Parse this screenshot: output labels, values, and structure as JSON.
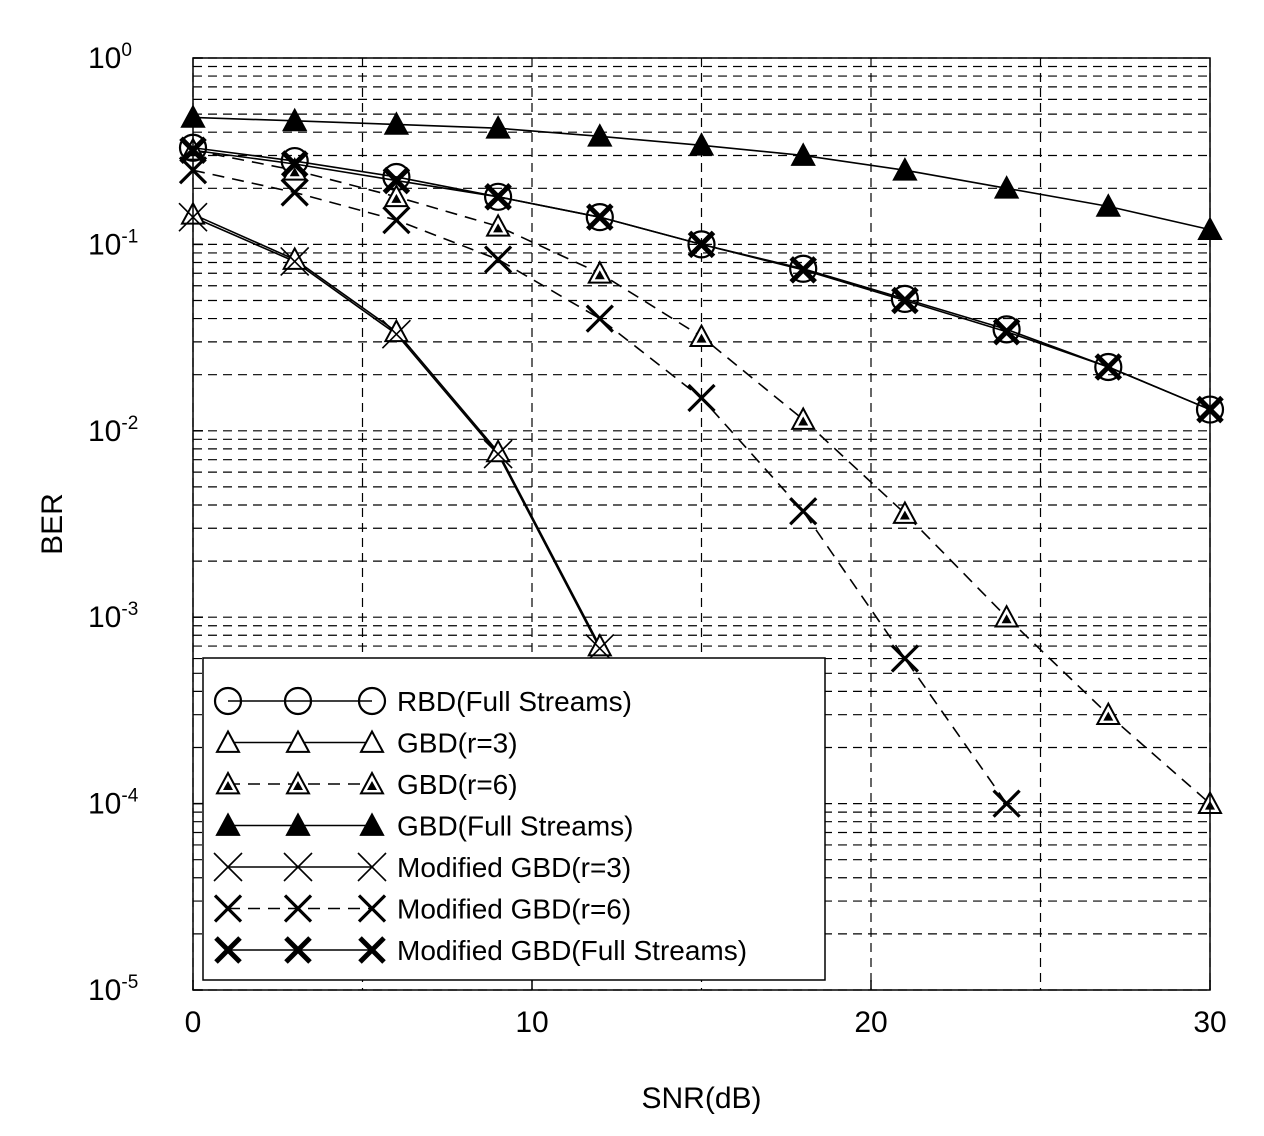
{
  "chart_data": {
    "type": "line",
    "xlabel": "SNR(dB)",
    "ylabel": "BER",
    "xlim": [
      0,
      30
    ],
    "ylim": [
      1e-05,
      1
    ],
    "yscale": "log",
    "grid": true,
    "legend_position": "bottom-left",
    "x_ticks": [
      {
        "value": 0,
        "label": "0"
      },
      {
        "value": 10,
        "label": "10"
      },
      {
        "value": 20,
        "label": "20"
      },
      {
        "value": 30,
        "label": "30"
      }
    ],
    "y_ticks": [
      {
        "value": 1,
        "base": "10",
        "exp": "0"
      },
      {
        "value": 0.1,
        "base": "10",
        "exp": "-1"
      },
      {
        "value": 0.01,
        "base": "10",
        "exp": "-2"
      },
      {
        "value": 0.001,
        "base": "10",
        "exp": "-3"
      },
      {
        "value": 0.0001,
        "base": "10",
        "exp": "-4"
      },
      {
        "value": 1e-05,
        "base": "10",
        "exp": "-5"
      }
    ],
    "series": [
      {
        "name": "RBD(Full Streams)",
        "marker": "circle",
        "line": "solid",
        "x": [
          0,
          3,
          6,
          9,
          12,
          15,
          18,
          21,
          24,
          27,
          30
        ],
        "y": [
          0.33,
          0.28,
          0.23,
          0.18,
          0.14,
          0.1,
          0.074,
          0.051,
          0.035,
          0.022,
          0.013
        ]
      },
      {
        "name": "GBD(r=3)",
        "marker": "triangle-open",
        "line": "solid",
        "x": [
          0,
          3,
          6,
          9,
          12
        ],
        "y": [
          0.145,
          0.083,
          0.034,
          0.0077,
          0.0007
        ]
      },
      {
        "name": "GBD(r=6)",
        "marker": "triangle-half",
        "line": "dashed",
        "x": [
          0,
          3,
          6,
          9,
          12,
          15,
          18,
          21,
          24,
          27,
          30
        ],
        "y": [
          0.32,
          0.25,
          0.18,
          0.125,
          0.07,
          0.032,
          0.0115,
          0.0036,
          0.001,
          0.0003,
          0.0001
        ]
      },
      {
        "name": "GBD(Full Streams)",
        "marker": "triangle-filled",
        "line": "solid",
        "x": [
          0,
          3,
          6,
          9,
          12,
          15,
          18,
          21,
          24,
          27,
          30
        ],
        "y": [
          0.48,
          0.46,
          0.44,
          0.42,
          0.38,
          0.34,
          0.3,
          0.25,
          0.2,
          0.16,
          0.12
        ]
      },
      {
        "name": "Modified GBD(r=3)",
        "marker": "x-thin",
        "line": "solid",
        "x": [
          0,
          3,
          6,
          9,
          12
        ],
        "y": [
          0.14,
          0.081,
          0.033,
          0.0075,
          0.00068
        ]
      },
      {
        "name": "Modified GBD(r=6)",
        "marker": "x-medium",
        "line": "dashed",
        "x": [
          0,
          3,
          6,
          9,
          12,
          15,
          18,
          21,
          24
        ],
        "y": [
          0.25,
          0.19,
          0.135,
          0.083,
          0.04,
          0.015,
          0.0037,
          0.0006,
          0.0001
        ]
      },
      {
        "name": "Modified GBD(Full Streams)",
        "marker": "x-bold",
        "line": "solid",
        "x": [
          0,
          3,
          6,
          9,
          12,
          15,
          18,
          21,
          24,
          27,
          30
        ],
        "y": [
          0.32,
          0.27,
          0.22,
          0.18,
          0.14,
          0.1,
          0.073,
          0.05,
          0.034,
          0.022,
          0.013
        ]
      }
    ]
  }
}
